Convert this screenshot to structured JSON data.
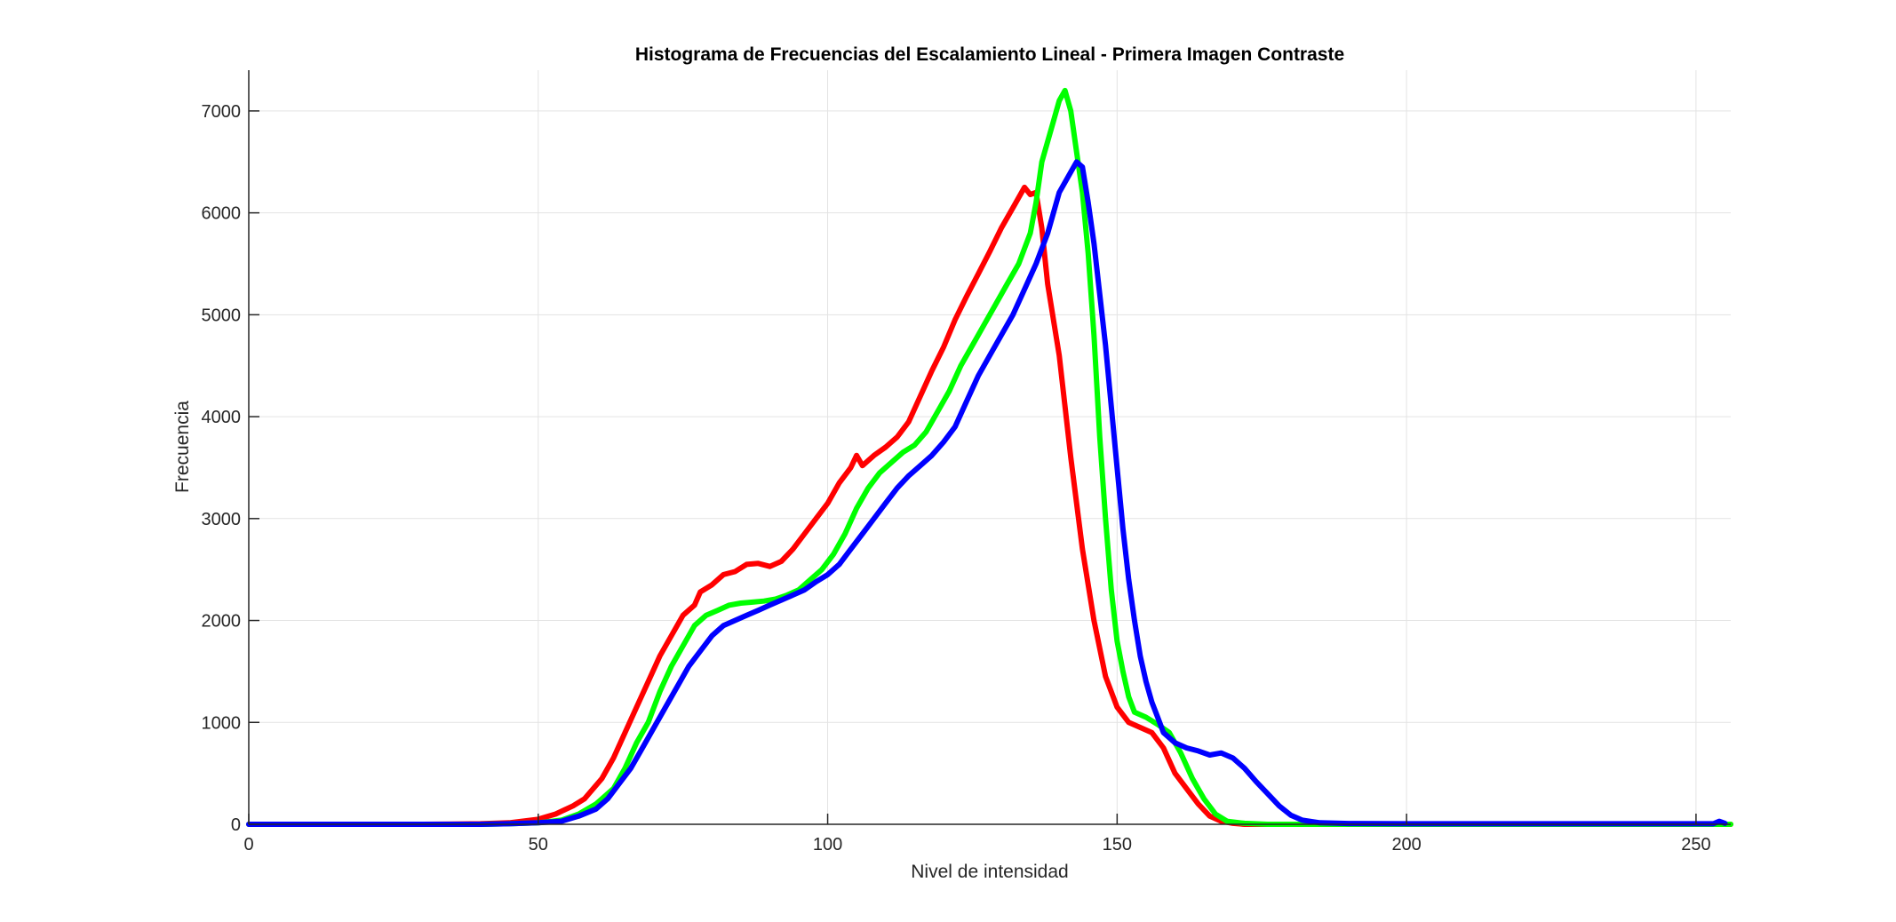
{
  "chart_data": {
    "type": "line",
    "title": "Histograma de Frecuencias del Escalamiento Lineal - Primera Imagen Contraste",
    "xlabel": "Nivel de intensidad",
    "ylabel": "Frecuencia",
    "xlim": [
      0,
      256
    ],
    "ylim": [
      0,
      7400
    ],
    "xticks": [
      0,
      50,
      100,
      150,
      200,
      250
    ],
    "yticks": [
      0,
      1000,
      2000,
      3000,
      4000,
      5000,
      6000,
      7000
    ],
    "grid": true,
    "legend": "none",
    "series": [
      {
        "color": "#ff0000",
        "points": [
          [
            0,
            0
          ],
          [
            30,
            0
          ],
          [
            40,
            5
          ],
          [
            45,
            15
          ],
          [
            50,
            50
          ],
          [
            53,
            100
          ],
          [
            56,
            180
          ],
          [
            58,
            250
          ],
          [
            61,
            450
          ],
          [
            63,
            650
          ],
          [
            65,
            900
          ],
          [
            67,
            1150
          ],
          [
            69,
            1400
          ],
          [
            71,
            1650
          ],
          [
            73,
            1850
          ],
          [
            75,
            2050
          ],
          [
            77,
            2150
          ],
          [
            78,
            2280
          ],
          [
            80,
            2350
          ],
          [
            82,
            2450
          ],
          [
            84,
            2480
          ],
          [
            86,
            2550
          ],
          [
            88,
            2560
          ],
          [
            90,
            2530
          ],
          [
            92,
            2580
          ],
          [
            94,
            2700
          ],
          [
            96,
            2850
          ],
          [
            98,
            3000
          ],
          [
            100,
            3150
          ],
          [
            102,
            3350
          ],
          [
            104,
            3500
          ],
          [
            105,
            3620
          ],
          [
            106,
            3520
          ],
          [
            108,
            3620
          ],
          [
            110,
            3700
          ],
          [
            112,
            3800
          ],
          [
            114,
            3950
          ],
          [
            116,
            4200
          ],
          [
            118,
            4450
          ],
          [
            120,
            4680
          ],
          [
            122,
            4950
          ],
          [
            124,
            5180
          ],
          [
            126,
            5400
          ],
          [
            128,
            5620
          ],
          [
            130,
            5850
          ],
          [
            132,
            6050
          ],
          [
            133,
            6150
          ],
          [
            134,
            6250
          ],
          [
            135,
            6180
          ],
          [
            136,
            6200
          ],
          [
            137,
            5850
          ],
          [
            138,
            5300
          ],
          [
            140,
            4600
          ],
          [
            142,
            3600
          ],
          [
            144,
            2700
          ],
          [
            146,
            2000
          ],
          [
            148,
            1450
          ],
          [
            150,
            1150
          ],
          [
            152,
            1000
          ],
          [
            154,
            950
          ],
          [
            156,
            900
          ],
          [
            158,
            750
          ],
          [
            160,
            500
          ],
          [
            162,
            350
          ],
          [
            164,
            200
          ],
          [
            166,
            80
          ],
          [
            168,
            30
          ],
          [
            170,
            10
          ],
          [
            172,
            0
          ],
          [
            256,
            0
          ]
        ]
      },
      {
        "color": "#00ff00",
        "points": [
          [
            0,
            0
          ],
          [
            40,
            0
          ],
          [
            45,
            5
          ],
          [
            50,
            15
          ],
          [
            54,
            40
          ],
          [
            57,
            100
          ],
          [
            60,
            200
          ],
          [
            63,
            350
          ],
          [
            65,
            550
          ],
          [
            67,
            800
          ],
          [
            69,
            1000
          ],
          [
            71,
            1300
          ],
          [
            73,
            1550
          ],
          [
            75,
            1750
          ],
          [
            77,
            1950
          ],
          [
            79,
            2050
          ],
          [
            81,
            2100
          ],
          [
            83,
            2150
          ],
          [
            85,
            2170
          ],
          [
            87,
            2180
          ],
          [
            89,
            2190
          ],
          [
            91,
            2210
          ],
          [
            93,
            2250
          ],
          [
            95,
            2300
          ],
          [
            97,
            2400
          ],
          [
            99,
            2500
          ],
          [
            101,
            2650
          ],
          [
            103,
            2850
          ],
          [
            105,
            3100
          ],
          [
            107,
            3300
          ],
          [
            109,
            3450
          ],
          [
            111,
            3550
          ],
          [
            113,
            3650
          ],
          [
            115,
            3720
          ],
          [
            117,
            3850
          ],
          [
            119,
            4050
          ],
          [
            121,
            4250
          ],
          [
            123,
            4500
          ],
          [
            125,
            4700
          ],
          [
            127,
            4900
          ],
          [
            129,
            5100
          ],
          [
            131,
            5300
          ],
          [
            133,
            5500
          ],
          [
            135,
            5800
          ],
          [
            136,
            6100
          ],
          [
            137,
            6500
          ],
          [
            139,
            6900
          ],
          [
            140,
            7100
          ],
          [
            141,
            7200
          ],
          [
            142,
            7000
          ],
          [
            143,
            6600
          ],
          [
            144,
            6200
          ],
          [
            145,
            5600
          ],
          [
            146,
            4800
          ],
          [
            147,
            3800
          ],
          [
            148,
            3000
          ],
          [
            149,
            2300
          ],
          [
            150,
            1800
          ],
          [
            151,
            1500
          ],
          [
            152,
            1250
          ],
          [
            153,
            1100
          ],
          [
            155,
            1050
          ],
          [
            157,
            980
          ],
          [
            159,
            900
          ],
          [
            161,
            700
          ],
          [
            163,
            450
          ],
          [
            165,
            250
          ],
          [
            167,
            100
          ],
          [
            169,
            30
          ],
          [
            172,
            10
          ],
          [
            176,
            0
          ],
          [
            256,
            0
          ]
        ]
      },
      {
        "color": "#0000ff",
        "points": [
          [
            0,
            0
          ],
          [
            40,
            0
          ],
          [
            45,
            5
          ],
          [
            50,
            15
          ],
          [
            54,
            30
          ],
          [
            57,
            80
          ],
          [
            60,
            150
          ],
          [
            62,
            250
          ],
          [
            64,
            400
          ],
          [
            66,
            550
          ],
          [
            68,
            750
          ],
          [
            70,
            950
          ],
          [
            72,
            1150
          ],
          [
            74,
            1350
          ],
          [
            76,
            1550
          ],
          [
            78,
            1700
          ],
          [
            80,
            1850
          ],
          [
            82,
            1950
          ],
          [
            84,
            2000
          ],
          [
            86,
            2050
          ],
          [
            88,
            2100
          ],
          [
            90,
            2150
          ],
          [
            92,
            2200
          ],
          [
            94,
            2250
          ],
          [
            96,
            2300
          ],
          [
            98,
            2380
          ],
          [
            100,
            2450
          ],
          [
            102,
            2550
          ],
          [
            104,
            2700
          ],
          [
            106,
            2850
          ],
          [
            108,
            3000
          ],
          [
            110,
            3150
          ],
          [
            112,
            3300
          ],
          [
            114,
            3420
          ],
          [
            116,
            3520
          ],
          [
            118,
            3620
          ],
          [
            120,
            3750
          ],
          [
            122,
            3900
          ],
          [
            124,
            4150
          ],
          [
            126,
            4400
          ],
          [
            128,
            4600
          ],
          [
            130,
            4800
          ],
          [
            132,
            5000
          ],
          [
            134,
            5250
          ],
          [
            136,
            5500
          ],
          [
            138,
            5800
          ],
          [
            140,
            6200
          ],
          [
            142,
            6400
          ],
          [
            143,
            6500
          ],
          [
            144,
            6450
          ],
          [
            145,
            6100
          ],
          [
            146,
            5700
          ],
          [
            147,
            5200
          ],
          [
            148,
            4700
          ],
          [
            149,
            4100
          ],
          [
            150,
            3500
          ],
          [
            151,
            2900
          ],
          [
            152,
            2400
          ],
          [
            153,
            2000
          ],
          [
            154,
            1650
          ],
          [
            155,
            1400
          ],
          [
            156,
            1200
          ],
          [
            157,
            1050
          ],
          [
            158,
            900
          ],
          [
            160,
            800
          ],
          [
            162,
            750
          ],
          [
            164,
            720
          ],
          [
            166,
            680
          ],
          [
            168,
            700
          ],
          [
            170,
            650
          ],
          [
            172,
            550
          ],
          [
            174,
            420
          ],
          [
            176,
            300
          ],
          [
            178,
            180
          ],
          [
            180,
            90
          ],
          [
            182,
            40
          ],
          [
            185,
            15
          ],
          [
            190,
            8
          ],
          [
            200,
            5
          ],
          [
            250,
            5
          ],
          [
            253,
            5
          ],
          [
            254,
            30
          ],
          [
            255,
            10
          ]
        ]
      }
    ]
  }
}
